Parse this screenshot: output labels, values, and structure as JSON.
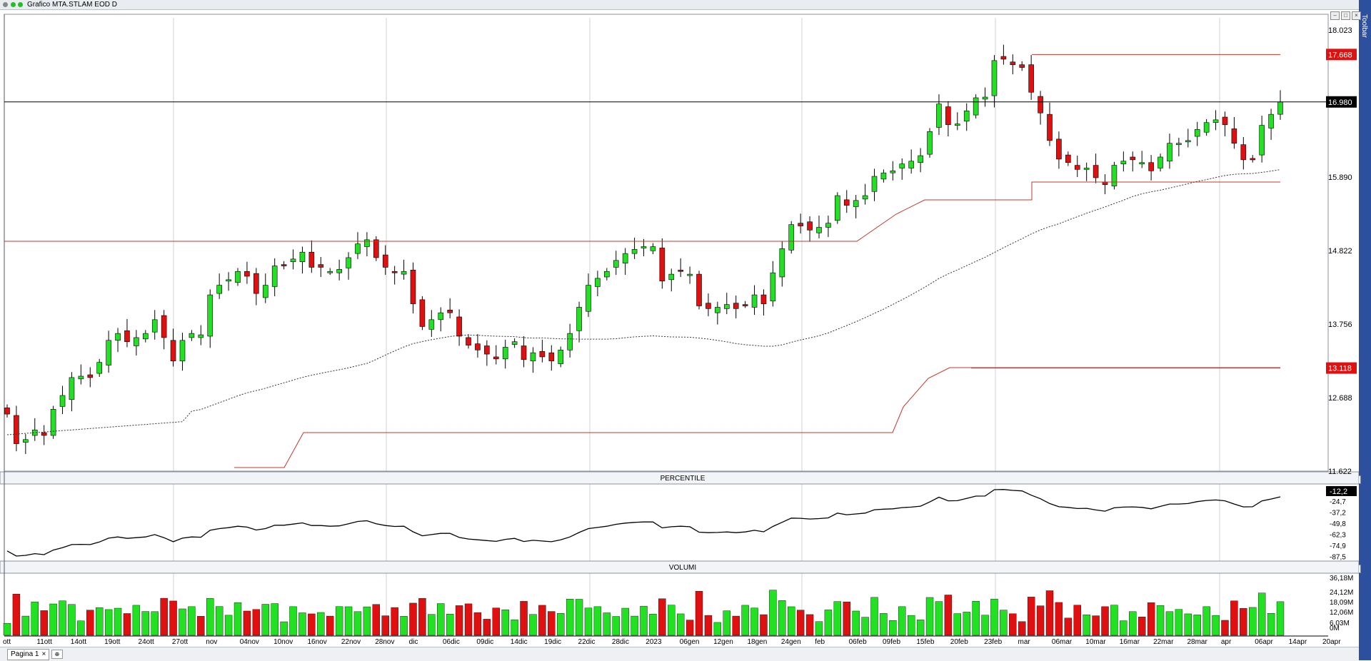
{
  "window": {
    "title": "Grafico MTA.STLAM EOD D",
    "sidebar_label": "Toolbar"
  },
  "bottom": {
    "tab_label": "Pagina 1",
    "tab_close": "×"
  },
  "colors": {
    "up": "#22e022",
    "down": "#e01010",
    "ref_line": "#c0392b",
    "last_badge": "#000000",
    "level_badge": "#e01010"
  },
  "price_panel": {
    "price_axis_ticks": [
      "18.023",
      "15.890",
      "14.822",
      "13.756",
      "12.688",
      "11.622"
    ],
    "last_price": "16.980",
    "upper_level": "17.668",
    "lower_level": "13.118"
  },
  "percentile_panel": {
    "title": "PERCENTILE",
    "last_value": "-12,2",
    "ticks": [
      "-24,7",
      "-37,2",
      "-49,8",
      "-62,3",
      "-74,9",
      "-87,5"
    ]
  },
  "volume_panel": {
    "title": "VOLUMI",
    "ticks": [
      "36,18M",
      "24,12M",
      "18,09M",
      "12,06M",
      "6,03M",
      "0M"
    ]
  },
  "date_labels": [
    "ott",
    "11ott",
    "14ott",
    "19ott",
    "24ott",
    "27ott",
    "nov",
    "04nov",
    "10nov",
    "16nov",
    "22nov",
    "28nov",
    "dic",
    "06dic",
    "09dic",
    "14dic",
    "19dic",
    "22dic",
    "28dic",
    "2023",
    "06gen",
    "12gen",
    "18gen",
    "24gen",
    "feb",
    "06feb",
    "09feb",
    "15feb",
    "20feb",
    "23feb",
    "mar",
    "06mar",
    "10mar",
    "16mar",
    "22mar",
    "28mar",
    "apr",
    "06apr",
    "14apr",
    "20apr"
  ],
  "chart_data": {
    "type": "candlestick",
    "symbol": "MTA.STLAM",
    "y_range": [
      11.622,
      18.2
    ],
    "close_series": [
      12.45,
      12.02,
      12.08,
      12.22,
      12.14,
      12.52,
      12.72,
      12.98,
      13.0,
      12.98,
      13.2,
      13.52,
      13.62,
      13.5,
      13.56,
      13.62,
      13.82,
      13.56,
      13.22,
      13.52,
      13.62,
      13.6,
      14.18,
      14.32,
      14.4,
      14.52,
      14.45,
      14.2,
      14.32,
      14.6,
      14.6,
      14.7,
      14.8,
      14.58,
      14.58,
      14.52,
      14.55,
      14.72,
      14.92,
      14.98,
      14.72,
      14.58,
      14.5,
      14.52,
      14.05,
      13.72,
      13.82,
      13.92,
      13.92,
      13.58,
      13.45,
      13.38,
      13.32,
      13.25,
      13.42,
      13.5,
      13.24,
      13.34,
      13.28,
      13.22,
      13.38,
      13.62,
      14.0,
      14.32,
      14.42,
      14.52,
      14.68,
      14.78,
      14.84,
      14.88,
      14.88,
      14.38,
      14.48,
      14.52,
      14.48,
      14.02,
      13.98,
      14.0,
      14.04,
      13.98,
      14.04,
      14.18,
      14.05,
      14.5,
      14.85,
      15.2,
      15.18,
      15.12,
      15.16,
      15.22,
      15.62,
      15.48,
      15.55,
      15.62,
      15.9,
      15.95,
      15.98,
      16.08,
      16.12,
      16.2,
      16.55,
      16.95,
      16.65,
      16.66,
      16.85,
      17.04,
      17.05,
      17.58,
      17.6,
      17.52,
      17.48,
      17.12,
      16.82,
      16.42,
      16.15,
      16.1,
      16.0,
      16.02,
      15.88,
      15.78,
      16.06,
      16.12,
      16.14,
      16.1,
      15.98,
      16.18,
      16.38,
      16.38,
      16.42,
      16.58,
      16.68,
      16.72,
      16.65,
      16.38,
      16.14,
      16.15,
      16.64,
      16.8,
      16.98
    ],
    "upper_level": 17.668,
    "lower_level": 13.118,
    "last_price": 16.98,
    "percentile_last": -12.2,
    "volume_max": 36.18
  }
}
